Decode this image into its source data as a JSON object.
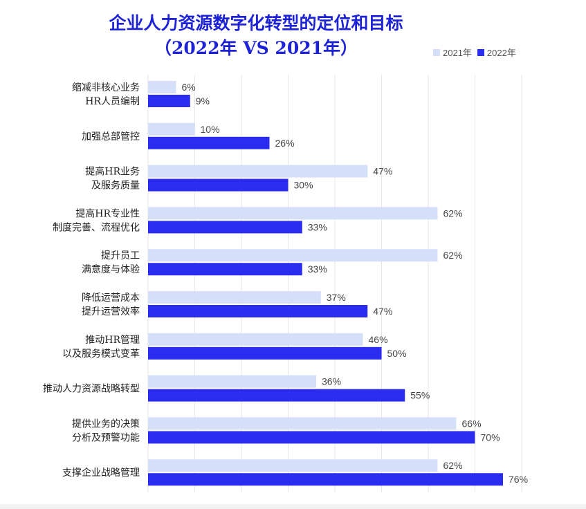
{
  "chart_data": {
    "type": "bar",
    "orientation": "horizontal",
    "title": [
      "企业人力资源数字化转型的定位和目标",
      "（2022年 VS 2021年）"
    ],
    "legend_position": "top-right",
    "grid": true,
    "xlim": [
      0,
      80
    ],
    "categories": [
      [
        "缩减非核心业务",
        "HR人员编制"
      ],
      [
        "加强总部管控"
      ],
      [
        "提高HR业务",
        "及服务质量"
      ],
      [
        "提高HR专业性",
        "制度完善、流程优化"
      ],
      [
        "提升员工",
        "满意度与体验"
      ],
      [
        "降低运营成本",
        "提升运营效率"
      ],
      [
        "推动HR管理",
        "以及服务模式变革"
      ],
      [
        "推动人力资源战略转型"
      ],
      [
        "提供业务的决策",
        "分析及预警功能"
      ],
      [
        "支撑企业战略管理"
      ]
    ],
    "series": [
      {
        "name": "2021年",
        "color": "#d6dffa",
        "values": [
          6,
          10,
          47,
          62,
          62,
          37,
          46,
          36,
          66,
          62
        ]
      },
      {
        "name": "2022年",
        "color": "#2a2cf0",
        "values": [
          9,
          26,
          30,
          33,
          33,
          47,
          50,
          55,
          70,
          76
        ]
      }
    ],
    "value_suffix": "%"
  }
}
